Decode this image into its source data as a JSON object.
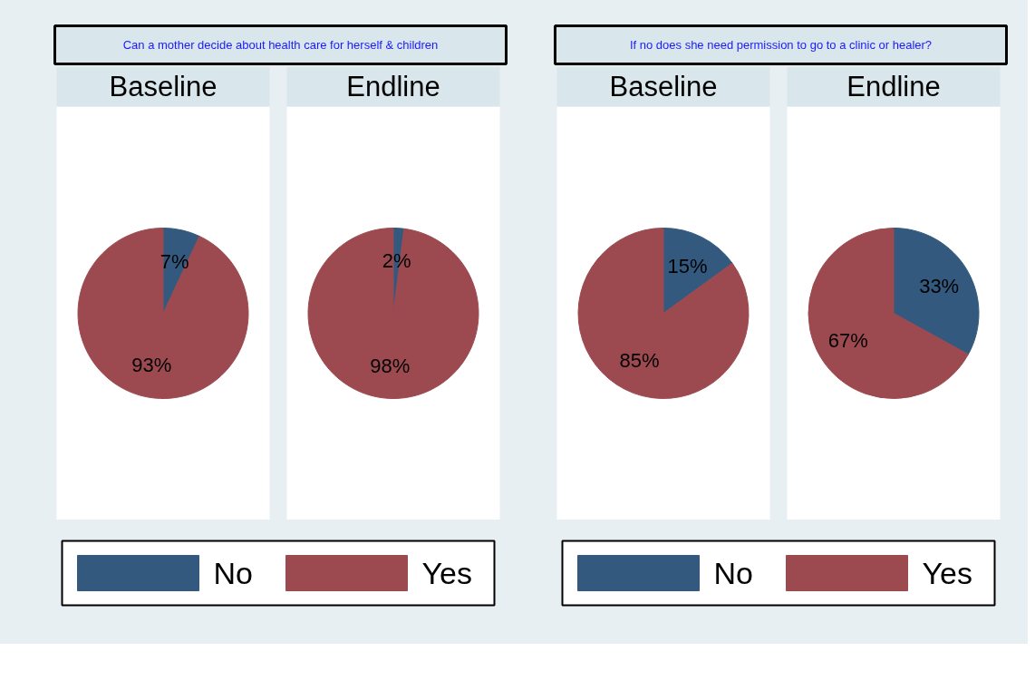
{
  "chart_data": [
    {
      "type": "pie",
      "title": "Baseline",
      "categories": [
        "No",
        "Yes"
      ],
      "values": [
        7,
        93
      ],
      "value_labels": [
        "7%",
        "93%"
      ],
      "data_labels": true,
      "colors": [
        "#335a7e",
        "#9c4a50"
      ],
      "legend": "bottom",
      "annotations": [
        "Can a mother decide about health care for herself & children"
      ]
    },
    {
      "type": "pie",
      "title": "Endline",
      "categories": [
        null,
        null
      ],
      "values": [
        2,
        98
      ],
      "value_labels": [
        "2%",
        "98%"
      ],
      "data_labels": true,
      "colors": [
        "#335a7e",
        "#9c4a50"
      ]
    },
    {
      "type": "pie",
      "title": "Baseline",
      "categories": [
        "No",
        "Yes"
      ],
      "values": [
        15,
        85
      ],
      "value_labels": [
        "15%",
        "85%"
      ],
      "data_labels": true,
      "colors": [
        "#335a7e",
        "#9c4a50"
      ],
      "legend": "bottom",
      "annotations": [
        "If no does she need permission to go to a clinic or healer?"
      ]
    },
    {
      "type": "pie",
      "title": "Endline",
      "categories": [
        null,
        null
      ],
      "values": [
        33,
        67
      ],
      "value_labels": [
        "33%",
        "67%"
      ],
      "data_labels": true,
      "colors": [
        "#335a7e",
        "#9c4a50"
      ]
    }
  ]
}
